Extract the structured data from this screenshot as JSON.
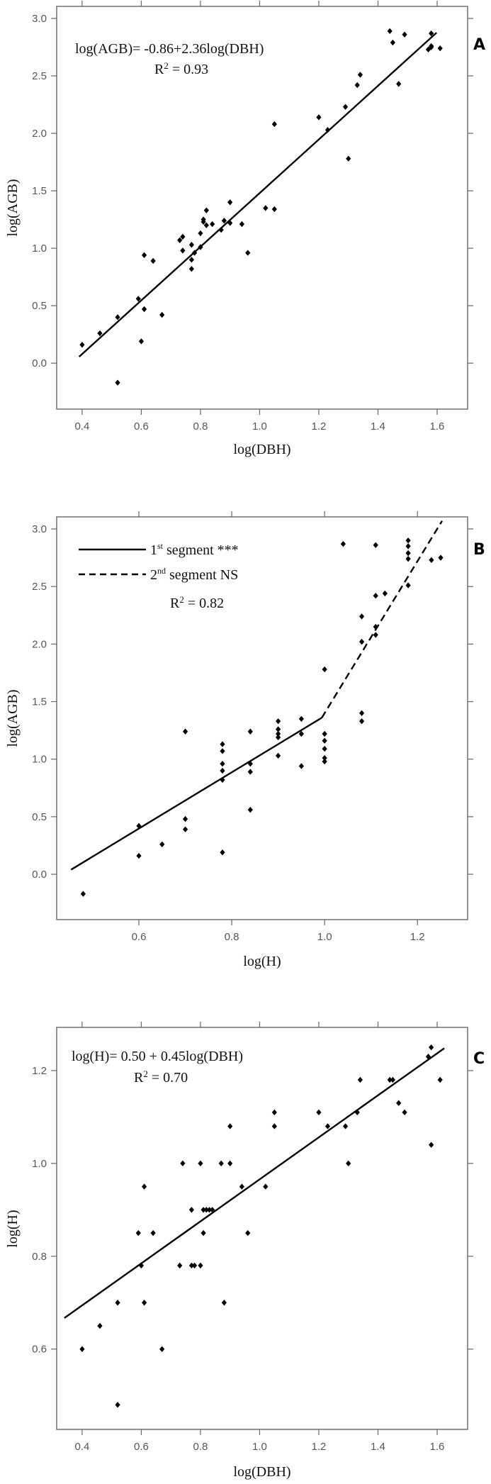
{
  "chart_data": [
    {
      "type": "scatter",
      "panel_label": "A",
      "xlabel": "log(DBH)",
      "ylabel": "log(AGB)",
      "xlim": [
        0.314,
        1.703
      ],
      "ylim": [
        -0.4,
        3.105
      ],
      "xticks": [
        "0.4",
        "0.6",
        "0.8",
        "1.0",
        "1.2",
        "1.4",
        "1.6"
      ],
      "yticks": [
        "0.0",
        "0.5",
        "1.0",
        "1.5",
        "2.0",
        "2.5",
        "3.0"
      ],
      "grid": false,
      "annotations": {
        "equation": "log(AGB)= -0.86+2.36log(DBH)",
        "r2_base": "R",
        "r2_sup": "2",
        "r2_rest": " = 0.93"
      },
      "fit_line": {
        "style": "solid",
        "x": [
          0.39,
          1.598
        ],
        "y": [
          0.056,
          2.876
        ]
      },
      "points": [
        [
          0.4,
          0.16
        ],
        [
          0.46,
          0.26
        ],
        [
          0.52,
          0.4
        ],
        [
          0.59,
          0.56
        ],
        [
          0.6,
          0.19
        ],
        [
          0.61,
          0.47
        ],
        [
          0.61,
          0.94
        ],
        [
          0.64,
          0.89
        ],
        [
          0.67,
          0.42
        ],
        [
          0.73,
          1.07
        ],
        [
          0.74,
          1.1
        ],
        [
          0.74,
          0.98
        ],
        [
          0.77,
          1.03
        ],
        [
          0.77,
          0.9
        ],
        [
          0.77,
          0.82
        ],
        [
          0.78,
          0.96
        ],
        [
          0.8,
          1.13
        ],
        [
          0.8,
          1.01
        ],
        [
          0.81,
          1.25
        ],
        [
          0.81,
          1.23
        ],
        [
          0.82,
          1.2
        ],
        [
          0.82,
          1.33
        ],
        [
          0.84,
          1.21
        ],
        [
          0.87,
          1.16
        ],
        [
          0.88,
          1.24
        ],
        [
          0.9,
          1.22
        ],
        [
          0.9,
          1.4
        ],
        [
          0.94,
          1.21
        ],
        [
          0.96,
          0.96
        ],
        [
          1.02,
          1.35
        ],
        [
          1.05,
          1.34
        ],
        [
          1.05,
          2.08
        ],
        [
          1.2,
          2.14
        ],
        [
          1.23,
          2.03
        ],
        [
          1.29,
          2.23
        ],
        [
          1.3,
          1.78
        ],
        [
          1.33,
          2.42
        ],
        [
          1.34,
          2.51
        ],
        [
          1.44,
          2.89
        ],
        [
          1.45,
          2.79
        ],
        [
          1.47,
          2.43
        ],
        [
          1.49,
          2.86
        ],
        [
          1.57,
          2.73
        ],
        [
          1.58,
          2.75
        ],
        [
          1.58,
          2.87
        ],
        [
          1.58,
          2.76
        ],
        [
          1.61,
          2.74
        ],
        [
          0.52,
          -0.17
        ]
      ]
    },
    {
      "type": "scatter",
      "panel_label": "B",
      "xlabel": "log(H)",
      "ylabel": "log(AGB)",
      "xlim": [
        0.423,
        1.308
      ],
      "ylim": [
        -0.394,
        3.105
      ],
      "xticks": [
        "0.6",
        "0.8",
        "1.0",
        "1.2"
      ],
      "yticks": [
        "0.0",
        "0.5",
        "1.0",
        "1.5",
        "2.0",
        "2.5",
        "3.0"
      ],
      "grid": false,
      "legend": [
        {
          "style": "solid",
          "label_base": "1",
          "label_sup": "st",
          "label_rest": "  segment ***"
        },
        {
          "style": "dashed",
          "label_base": "2",
          "label_sup": "nd",
          "label_rest": " segment  NS"
        }
      ],
      "annotations": {
        "r2_base": "R",
        "r2_sup": "2",
        "r2_rest": " = 0.82"
      },
      "fit_segments": [
        {
          "style": "solid",
          "x": [
            0.454,
            0.994
          ],
          "y": [
            0.04,
            1.36
          ]
        },
        {
          "style": "dashed",
          "x": [
            0.994,
            1.253
          ],
          "y": [
            1.36,
            3.07
          ]
        }
      ],
      "points": [
        [
          0.48,
          -0.17
        ],
        [
          0.6,
          0.16
        ],
        [
          0.6,
          0.42
        ],
        [
          0.65,
          0.26
        ],
        [
          0.7,
          1.24
        ],
        [
          0.7,
          0.48
        ],
        [
          0.7,
          0.39
        ],
        [
          0.78,
          1.13
        ],
        [
          0.78,
          1.07
        ],
        [
          0.78,
          0.96
        ],
        [
          0.78,
          0.9
        ],
        [
          0.78,
          0.82
        ],
        [
          0.78,
          0.19
        ],
        [
          0.84,
          1.24
        ],
        [
          0.84,
          0.96
        ],
        [
          0.84,
          0.89
        ],
        [
          0.84,
          0.56
        ],
        [
          0.9,
          1.33
        ],
        [
          0.9,
          1.26
        ],
        [
          0.9,
          1.22
        ],
        [
          0.9,
          1.19
        ],
        [
          0.9,
          1.03
        ],
        [
          0.95,
          1.35
        ],
        [
          0.95,
          1.22
        ],
        [
          0.95,
          0.94
        ],
        [
          1.0,
          1.78
        ],
        [
          1.0,
          1.22
        ],
        [
          1.0,
          1.16
        ],
        [
          1.0,
          1.09
        ],
        [
          1.0,
          1.01
        ],
        [
          1.0,
          0.98
        ],
        [
          1.04,
          2.87
        ],
        [
          1.08,
          2.24
        ],
        [
          1.08,
          2.02
        ],
        [
          1.08,
          1.4
        ],
        [
          1.08,
          1.33
        ],
        [
          1.11,
          2.86
        ],
        [
          1.11,
          2.42
        ],
        [
          1.11,
          2.15
        ],
        [
          1.11,
          2.08
        ],
        [
          1.13,
          2.44
        ],
        [
          1.18,
          2.9
        ],
        [
          1.18,
          2.85
        ],
        [
          1.18,
          2.79
        ],
        [
          1.18,
          2.74
        ],
        [
          1.18,
          2.51
        ],
        [
          1.23,
          2.73
        ],
        [
          1.25,
          2.75
        ]
      ]
    },
    {
      "type": "scatter",
      "panel_label": "C",
      "xlabel": "log(DBH)",
      "ylabel": "log(H)",
      "xlim": [
        0.314,
        1.703
      ],
      "ylim": [
        0.427,
        1.293
      ],
      "xticks": [
        "0.4",
        "0.6",
        "0.8",
        "1.0",
        "1.2",
        "1.4",
        "1.6"
      ],
      "yticks": [
        "0.6",
        "0.8",
        "1.0",
        "1.2"
      ],
      "grid": false,
      "annotations": {
        "equation": "log(H)= 0.50 + 0.45log(DBH)",
        "r2_base": "R",
        "r2_sup": "2",
        "r2_rest": " = 0.70"
      },
      "fit_line": {
        "style": "solid",
        "x": [
          0.34,
          1.624
        ],
        "y": [
          0.667,
          1.248
        ]
      },
      "points": [
        [
          0.4,
          0.6
        ],
        [
          0.46,
          0.65
        ],
        [
          0.52,
          0.7
        ],
        [
          0.52,
          0.48
        ],
        [
          0.59,
          0.85
        ],
        [
          0.6,
          0.78
        ],
        [
          0.61,
          0.95
        ],
        [
          0.61,
          0.7
        ],
        [
          0.64,
          0.85
        ],
        [
          0.67,
          0.6
        ],
        [
          0.73,
          0.78
        ],
        [
          0.74,
          1.0
        ],
        [
          0.77,
          0.9
        ],
        [
          0.77,
          0.78
        ],
        [
          0.78,
          0.78
        ],
        [
          0.8,
          0.78
        ],
        [
          0.8,
          1.0
        ],
        [
          0.81,
          0.9
        ],
        [
          0.81,
          0.85
        ],
        [
          0.82,
          0.9
        ],
        [
          0.83,
          0.9
        ],
        [
          0.84,
          0.9
        ],
        [
          0.87,
          1.0
        ],
        [
          0.88,
          0.7
        ],
        [
          0.9,
          1.08
        ],
        [
          0.9,
          1.0
        ],
        [
          0.94,
          0.95
        ],
        [
          0.96,
          0.85
        ],
        [
          1.02,
          0.95
        ],
        [
          1.05,
          1.08
        ],
        [
          1.05,
          1.11
        ],
        [
          1.2,
          1.11
        ],
        [
          1.23,
          1.08
        ],
        [
          1.29,
          1.08
        ],
        [
          1.3,
          1.0
        ],
        [
          1.33,
          1.11
        ],
        [
          1.34,
          1.18
        ],
        [
          1.44,
          1.18
        ],
        [
          1.45,
          1.18
        ],
        [
          1.47,
          1.13
        ],
        [
          1.49,
          1.11
        ],
        [
          1.57,
          1.23
        ],
        [
          1.58,
          1.25
        ],
        [
          1.58,
          1.04
        ],
        [
          1.61,
          1.18
        ]
      ]
    }
  ]
}
